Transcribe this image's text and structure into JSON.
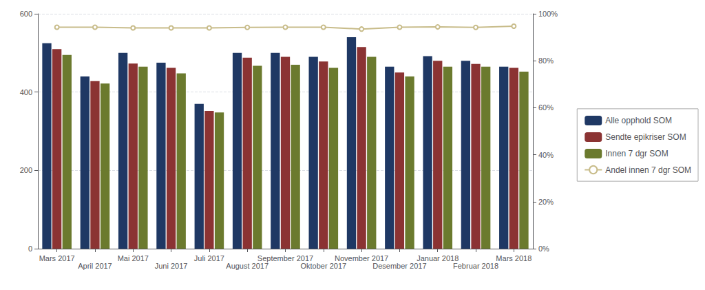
{
  "chart_data": {
    "type": "bar",
    "categories": [
      "Mars 2017",
      "April 2017",
      "Mai 2017",
      "Juni 2017",
      "Juli 2017",
      "August 2017",
      "September 2017",
      "Oktober 2017",
      "November 2017",
      "Desember 2017",
      "Januar 2018",
      "Februar 2018",
      "Mars 2018"
    ],
    "series": [
      {
        "name": "Alle opphold SOM",
        "type": "bar",
        "color": "#1f3864",
        "values": [
          525,
          440,
          500,
          475,
          370,
          500,
          500,
          490,
          540,
          465,
          492,
          480,
          465
        ]
      },
      {
        "name": "Sendte epikriser SOM",
        "type": "bar",
        "color": "#8b3333",
        "values": [
          510,
          428,
          473,
          462,
          352,
          488,
          490,
          478,
          515,
          450,
          480,
          472,
          462
        ]
      },
      {
        "name": "Innen 7 dgr SOM",
        "type": "bar",
        "color": "#6b7a2e",
        "values": [
          495,
          422,
          465,
          448,
          348,
          467,
          470,
          462,
          490,
          440,
          465,
          465,
          452
        ]
      },
      {
        "name": "Andel innen 7 dgr SOM",
        "type": "line",
        "axis": "y2",
        "color": "#c8bc8a",
        "marker": "circle",
        "values": [
          0.943,
          0.943,
          0.94,
          0.94,
          0.94,
          0.942,
          0.943,
          0.943,
          0.935,
          0.943,
          0.944,
          0.942,
          0.947
        ]
      }
    ],
    "ylim": [
      0,
      600
    ],
    "yticks": [
      0,
      200,
      400,
      600
    ],
    "y2lim": [
      0,
      1.0
    ],
    "y2ticks": [
      {
        "value": 0.0,
        "label": "0%"
      },
      {
        "value": 0.2,
        "label": "20%"
      },
      {
        "value": 0.4,
        "label": "40%"
      },
      {
        "value": 0.6,
        "label": "60%"
      },
      {
        "value": 0.8,
        "label": "80%"
      },
      {
        "value": 1.0,
        "label": "100%"
      }
    ],
    "grid": true,
    "legend": "right"
  }
}
